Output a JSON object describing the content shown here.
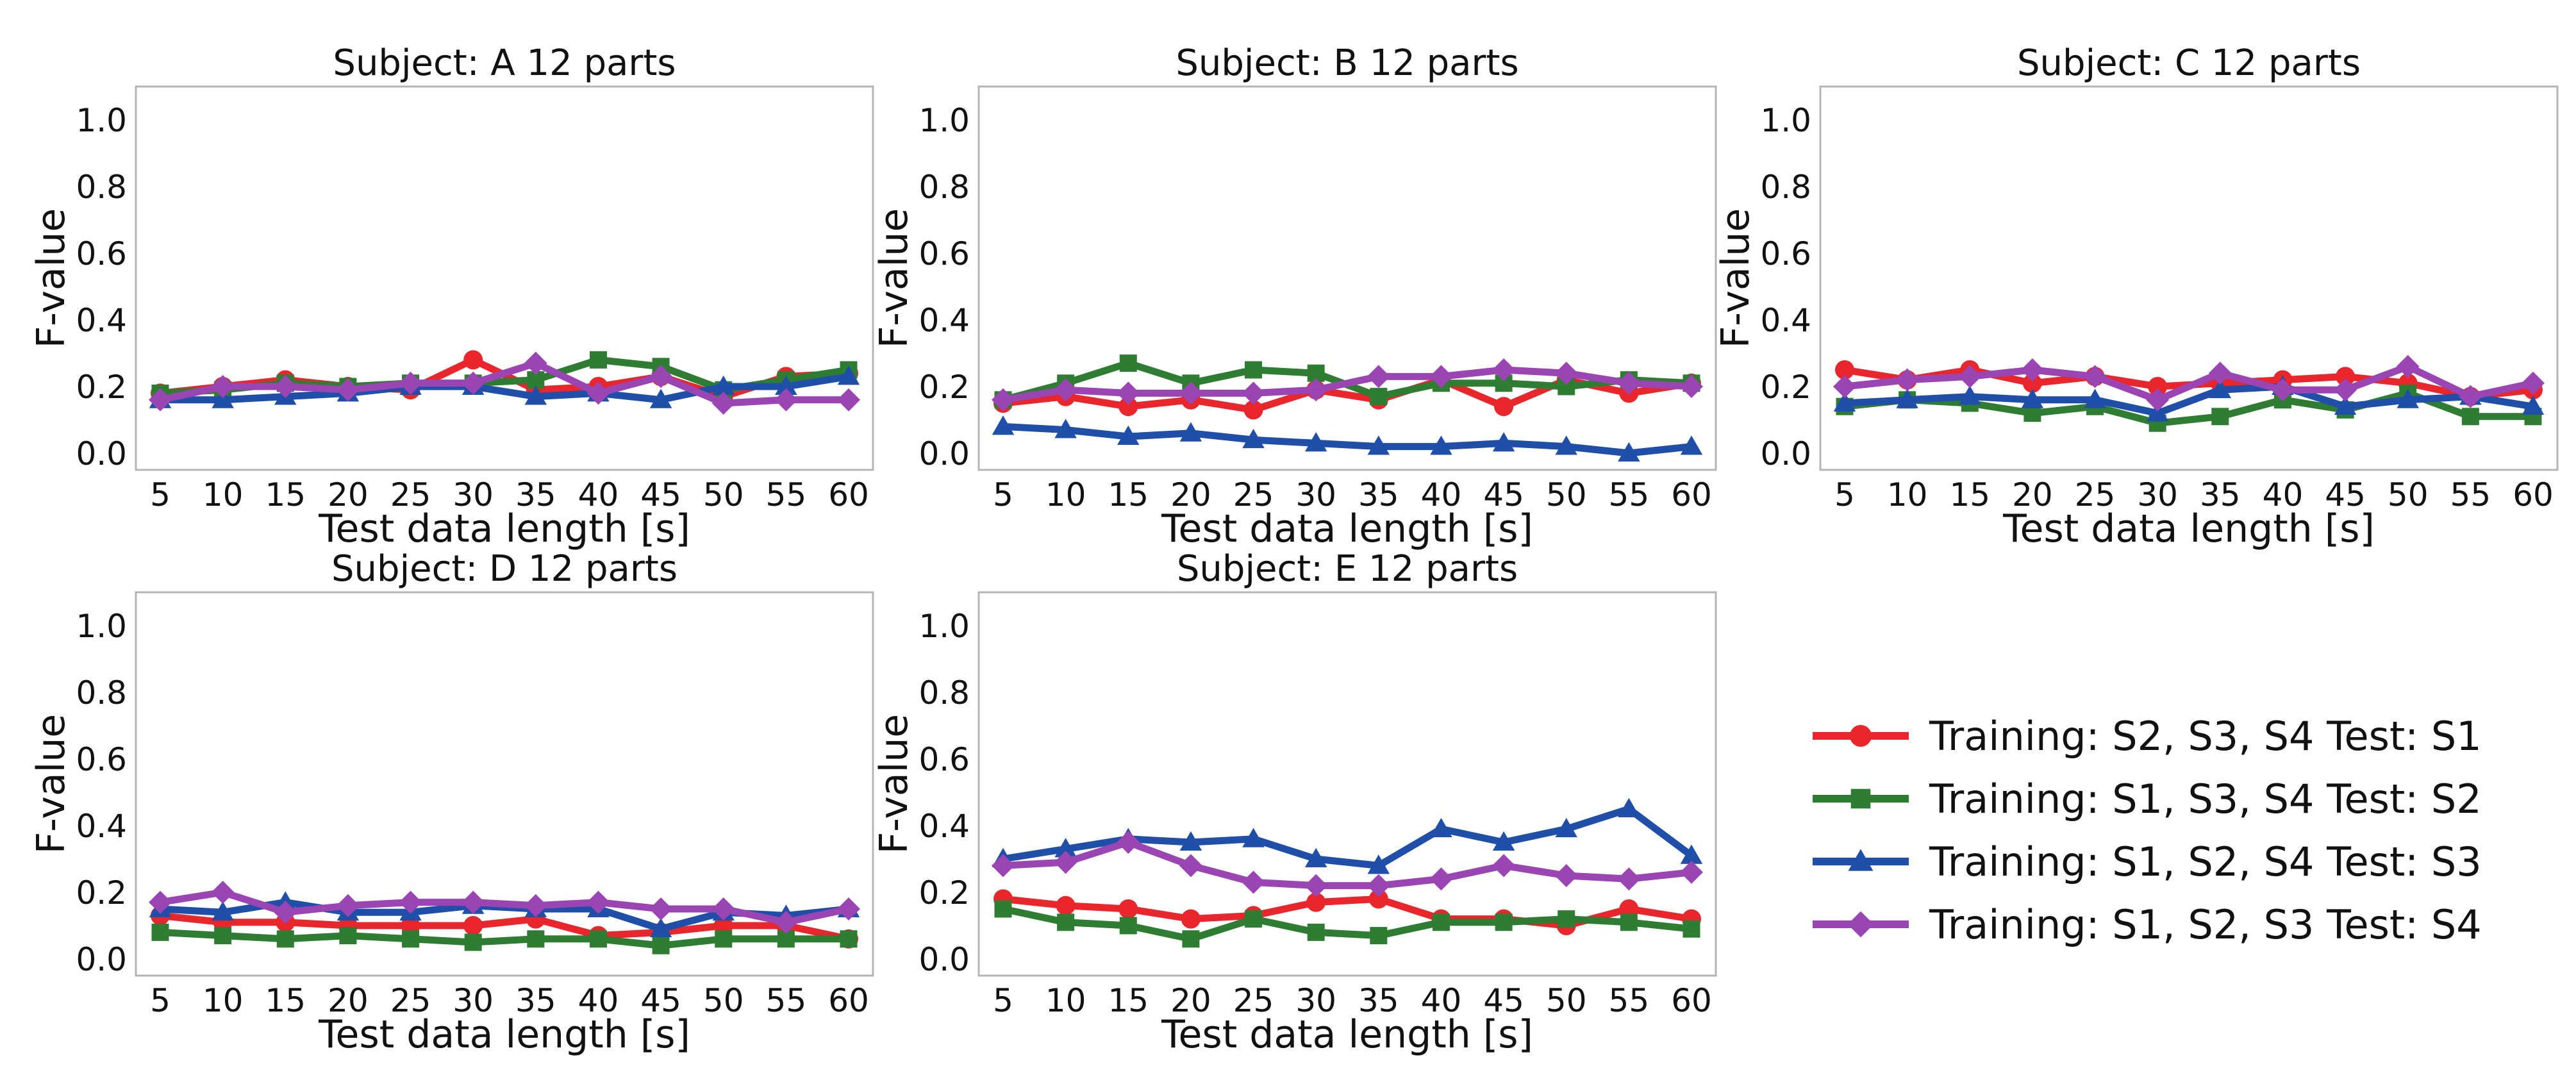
{
  "colors": {
    "s1": "#e8262b",
    "s2": "#2e7d32",
    "s3": "#1f4fa8",
    "s4": "#9b45b5"
  },
  "legend": [
    {
      "label": "Training: S2, S3, S4  Test: S1",
      "color": "#e8262b",
      "marker": "circle"
    },
    {
      "label": "Training: S1, S3, S4  Test: S2",
      "color": "#2e7d32",
      "marker": "square"
    },
    {
      "label": "Training: S1, S2, S4  Test: S3",
      "color": "#1f4fa8",
      "marker": "triangle"
    },
    {
      "label": "Training: S1, S2, S3  Test: S4",
      "color": "#9b45b5",
      "marker": "diamond"
    }
  ],
  "chart_data": [
    {
      "type": "line",
      "title": "Subject: A   12 parts",
      "xlabel": "Test data length [s]",
      "ylabel": "F-value",
      "x": [
        5,
        10,
        15,
        20,
        25,
        30,
        35,
        40,
        45,
        50,
        55,
        60
      ],
      "yticks": [
        "0.0",
        "0.2",
        "0.4",
        "0.6",
        "0.8",
        "1.0"
      ],
      "ylim": [
        -0.05,
        1.1
      ],
      "series": [
        {
          "name": "Training: S2, S3, S4  Test: S1",
          "values": [
            0.18,
            0.2,
            0.22,
            0.2,
            0.19,
            0.28,
            0.19,
            0.2,
            0.23,
            0.17,
            0.23,
            0.24
          ]
        },
        {
          "name": "Training: S1, S3, S4  Test: S2",
          "values": [
            0.18,
            0.19,
            0.21,
            0.2,
            0.21,
            0.21,
            0.22,
            0.28,
            0.26,
            0.19,
            0.22,
            0.25
          ]
        },
        {
          "name": "Training: S1, S2, S4  Test: S3",
          "values": [
            0.16,
            0.16,
            0.17,
            0.18,
            0.2,
            0.2,
            0.17,
            0.18,
            0.16,
            0.2,
            0.2,
            0.23
          ]
        },
        {
          "name": "Training: S1, S2, S3  Test: S4",
          "values": [
            0.16,
            0.2,
            0.2,
            0.19,
            0.21,
            0.21,
            0.27,
            0.18,
            0.23,
            0.15,
            0.16,
            0.16
          ]
        }
      ]
    },
    {
      "type": "line",
      "title": "Subject: B   12 parts",
      "xlabel": "Test data length [s]",
      "ylabel": "F-value",
      "x": [
        5,
        10,
        15,
        20,
        25,
        30,
        35,
        40,
        45,
        50,
        55,
        60
      ],
      "yticks": [
        "0.0",
        "0.2",
        "0.4",
        "0.6",
        "0.8",
        "1.0"
      ],
      "ylim": [
        -0.05,
        1.1
      ],
      "series": [
        {
          "name": "Training: S2, S3, S4  Test: S1",
          "values": [
            0.15,
            0.17,
            0.14,
            0.16,
            0.13,
            0.19,
            0.16,
            0.22,
            0.14,
            0.22,
            0.18,
            0.21
          ]
        },
        {
          "name": "Training: S1, S3, S4  Test: S2",
          "values": [
            0.16,
            0.21,
            0.27,
            0.21,
            0.25,
            0.24,
            0.17,
            0.21,
            0.21,
            0.2,
            0.22,
            0.21
          ]
        },
        {
          "name": "Training: S1, S2, S4  Test: S3",
          "values": [
            0.08,
            0.07,
            0.05,
            0.06,
            0.04,
            0.03,
            0.02,
            0.02,
            0.03,
            0.02,
            0.0,
            0.02
          ]
        },
        {
          "name": "Training: S1, S2, S3  Test: S4",
          "values": [
            0.16,
            0.19,
            0.18,
            0.18,
            0.18,
            0.19,
            0.23,
            0.23,
            0.25,
            0.24,
            0.21,
            0.2
          ]
        }
      ]
    },
    {
      "type": "line",
      "title": "Subject: C   12 parts",
      "xlabel": "Test data length [s]",
      "ylabel": "F-value",
      "x": [
        5,
        10,
        15,
        20,
        25,
        30,
        35,
        40,
        45,
        50,
        55,
        60
      ],
      "yticks": [
        "0.0",
        "0.2",
        "0.4",
        "0.6",
        "0.8",
        "1.0"
      ],
      "ylim": [
        -0.05,
        1.1
      ],
      "series": [
        {
          "name": "Training: S2, S3, S4  Test: S1",
          "values": [
            0.25,
            0.22,
            0.25,
            0.21,
            0.23,
            0.2,
            0.21,
            0.22,
            0.23,
            0.21,
            0.17,
            0.19
          ]
        },
        {
          "name": "Training: S1, S3, S4  Test: S2",
          "values": [
            0.14,
            0.16,
            0.15,
            0.12,
            0.14,
            0.09,
            0.11,
            0.16,
            0.13,
            0.18,
            0.11,
            0.11
          ]
        },
        {
          "name": "Training: S1, S2, S4  Test: S3",
          "values": [
            0.15,
            0.16,
            0.17,
            0.16,
            0.16,
            0.12,
            0.19,
            0.2,
            0.14,
            0.16,
            0.17,
            0.14
          ]
        },
        {
          "name": "Training: S1, S2, S3  Test: S4",
          "values": [
            0.2,
            0.22,
            0.23,
            0.25,
            0.23,
            0.16,
            0.24,
            0.19,
            0.19,
            0.26,
            0.17,
            0.21
          ]
        }
      ]
    },
    {
      "type": "line",
      "title": "Subject: D   12 parts",
      "xlabel": "Test data length [s]",
      "ylabel": "F-value",
      "x": [
        5,
        10,
        15,
        20,
        25,
        30,
        35,
        40,
        45,
        50,
        55,
        60
      ],
      "yticks": [
        "0.0",
        "0.2",
        "0.4",
        "0.6",
        "0.8",
        "1.0"
      ],
      "ylim": [
        -0.05,
        1.1
      ],
      "series": [
        {
          "name": "Training: S2, S3, S4  Test: S1",
          "values": [
            0.13,
            0.11,
            0.11,
            0.1,
            0.1,
            0.1,
            0.12,
            0.07,
            0.08,
            0.1,
            0.1,
            0.06
          ]
        },
        {
          "name": "Training: S1, S3, S4  Test: S2",
          "values": [
            0.08,
            0.07,
            0.06,
            0.07,
            0.06,
            0.05,
            0.06,
            0.06,
            0.04,
            0.06,
            0.06,
            0.06
          ]
        },
        {
          "name": "Training: S1, S2, S4  Test: S3",
          "values": [
            0.15,
            0.14,
            0.17,
            0.14,
            0.14,
            0.16,
            0.15,
            0.15,
            0.09,
            0.14,
            0.13,
            0.15
          ]
        },
        {
          "name": "Training: S1, S2, S3  Test: S4",
          "values": [
            0.17,
            0.2,
            0.14,
            0.16,
            0.17,
            0.17,
            0.16,
            0.17,
            0.15,
            0.15,
            0.11,
            0.15
          ]
        }
      ]
    },
    {
      "type": "line",
      "title": "Subject: E   12 parts",
      "xlabel": "Test data length [s]",
      "ylabel": "F-value",
      "x": [
        5,
        10,
        15,
        20,
        25,
        30,
        35,
        40,
        45,
        50,
        55,
        60
      ],
      "yticks": [
        "0.0",
        "0.2",
        "0.4",
        "0.6",
        "0.8",
        "1.0"
      ],
      "ylim": [
        -0.05,
        1.1
      ],
      "series": [
        {
          "name": "Training: S2, S3, S4  Test: S1",
          "values": [
            0.18,
            0.16,
            0.15,
            0.12,
            0.13,
            0.17,
            0.18,
            0.12,
            0.12,
            0.1,
            0.15,
            0.12
          ]
        },
        {
          "name": "Training: S1, S3, S4  Test: S2",
          "values": [
            0.15,
            0.11,
            0.1,
            0.06,
            0.12,
            0.08,
            0.07,
            0.11,
            0.11,
            0.12,
            0.11,
            0.09
          ]
        },
        {
          "name": "Training: S1, S2, S4  Test: S3",
          "values": [
            0.3,
            0.33,
            0.36,
            0.35,
            0.36,
            0.3,
            0.28,
            0.39,
            0.35,
            0.39,
            0.45,
            0.31
          ]
        },
        {
          "name": "Training: S1, S2, S3  Test: S4",
          "values": [
            0.28,
            0.29,
            0.35,
            0.28,
            0.23,
            0.22,
            0.22,
            0.24,
            0.28,
            0.25,
            0.24,
            0.26
          ]
        }
      ]
    }
  ]
}
